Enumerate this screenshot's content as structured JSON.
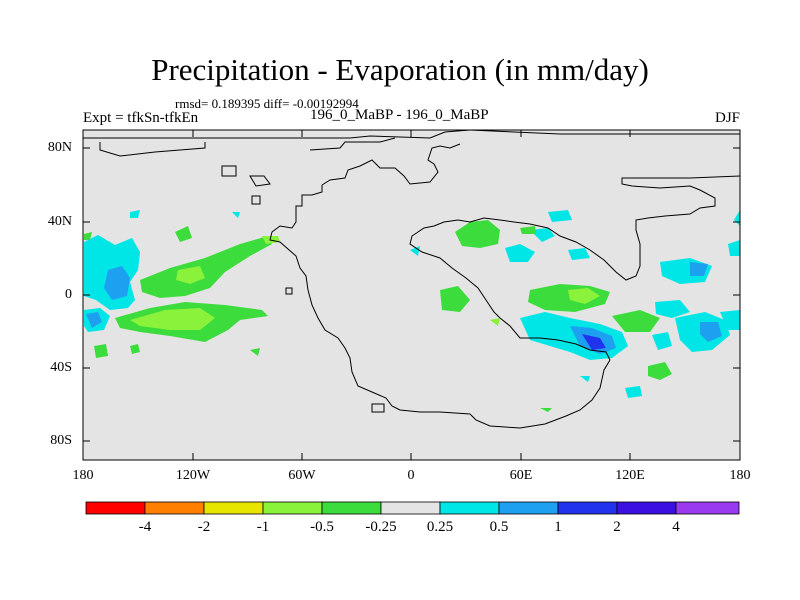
{
  "title": "Precipitation - Evaporation (in mm/day)",
  "subtitle": "rmsd= 0.189395 diff= -0.00192994",
  "left_string": "Expt = tfkSn-tfkEn",
  "center_string": "196_0_MaBP - 196_0_MaBP",
  "right_string": "DJF",
  "map": {
    "projection": "cylindrical equidistant",
    "lat_labels": [
      "80N",
      "40N",
      "0",
      "40S",
      "80S"
    ],
    "lon_labels": [
      "180",
      "120W",
      "60W",
      "0",
      "60E",
      "120E",
      "180"
    ],
    "background_color": "#e4e4e4",
    "anomaly_regions": [
      {
        "lon": -170,
        "lat": 5,
        "level": "0.5",
        "color": "#00ecec"
      },
      {
        "lon": -164,
        "lat": 3,
        "level": "1",
        "color": "#1aa1ef"
      },
      {
        "lon": -168,
        "lat": -13,
        "level": "0.5",
        "color": "#00ecec"
      },
      {
        "lon": -132,
        "lat": -13,
        "level": "-0.25",
        "color": "#37e837"
      },
      {
        "lon": -118,
        "lat": -13,
        "level": "-0.5",
        "color": "#88ec2a"
      },
      {
        "lon": -125,
        "lat": 10,
        "level": "-0.25",
        "color": "#37e837"
      },
      {
        "lon": -115,
        "lat": 35,
        "level": "-0.25",
        "color": "#37e837"
      },
      {
        "lon": 55,
        "lat": 0,
        "level": "-0.25",
        "color": "#37e837"
      },
      {
        "lon": 30,
        "lat": 33,
        "level": "-0.25",
        "color": "#37e837"
      },
      {
        "lon": 95,
        "lat": -25,
        "level": "0.5",
        "color": "#00ecec"
      },
      {
        "lon": 97,
        "lat": -26,
        "level": "1",
        "color": "#1aa1ef"
      },
      {
        "lon": 97,
        "lat": -26,
        "level": "2",
        "color": "#2b3ced"
      },
      {
        "lon": 120,
        "lat": -15,
        "level": "-0.25",
        "color": "#37e837"
      },
      {
        "lon": 160,
        "lat": -18,
        "level": "0.5",
        "color": "#00ecec"
      },
      {
        "lon": 140,
        "lat": 12,
        "level": "0.5",
        "color": "#00ecec"
      },
      {
        "lon": 135,
        "lat": -42,
        "level": "-0.25",
        "color": "#37e837"
      }
    ]
  },
  "colorbar": {
    "labels": [
      "-4",
      "-2",
      "-1",
      "-0.5",
      "-0.25",
      "0.25",
      "0.5",
      "1",
      "2",
      "4"
    ],
    "colors": [
      "#ff0000",
      "#ff8000",
      "#e6e600",
      "#8af23a",
      "#3ddc3d",
      "#e4e4e4",
      "#00e6e6",
      "#1ea0f0",
      "#2233ee",
      "#3c10e0",
      "#9a3af0"
    ]
  }
}
